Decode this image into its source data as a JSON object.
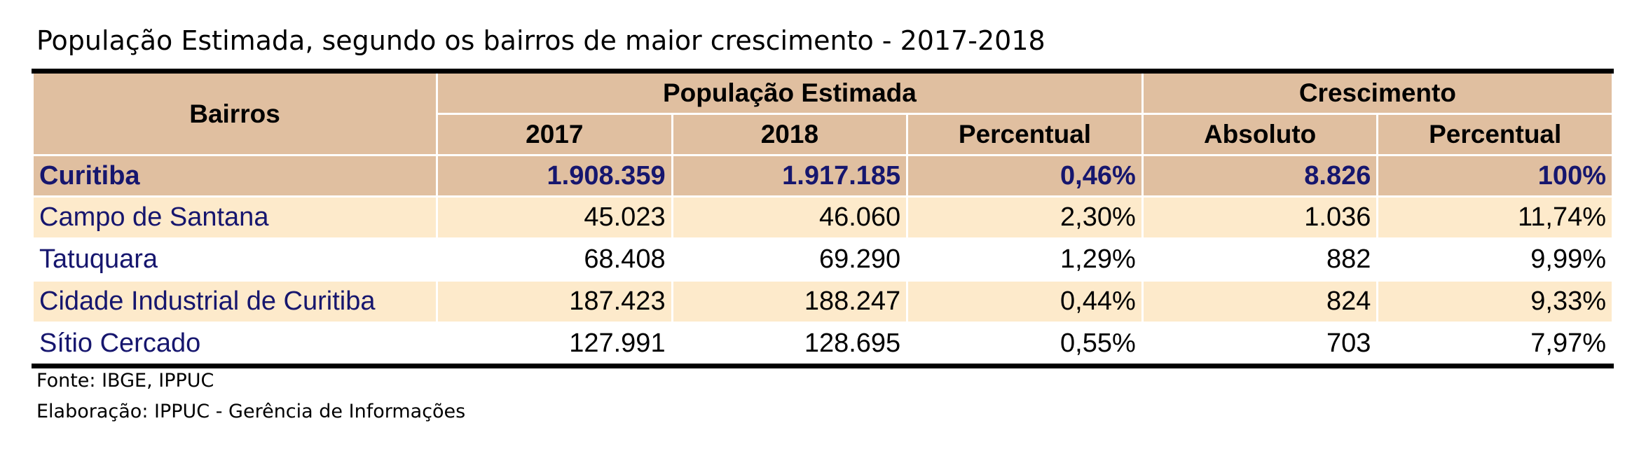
{
  "title": "População Estimada, segundo os bairros de maior crescimento  - 2017-2018",
  "header": {
    "bairros": "Bairros",
    "group_pop": "População Estimada",
    "group_cresc": "Crescimento",
    "col_2017": "2017",
    "col_2018": "2018",
    "col_pct": "Percentual",
    "col_abs": "Absoluto",
    "col_pct2": "Percentual"
  },
  "rows": [
    {
      "name": "Curitiba",
      "y2017": "1.908.359",
      "y2018": "1.917.185",
      "pct": "0,46%",
      "abs": "8.826",
      "pct2": "100%"
    },
    {
      "name": "Campo de Santana",
      "y2017": "45.023",
      "y2018": "46.060",
      "pct": "2,30%",
      "abs": "1.036",
      "pct2": "11,74%"
    },
    {
      "name": "Tatuquara",
      "y2017": "68.408",
      "y2018": "69.290",
      "pct": "1,29%",
      "abs": "882",
      "pct2": "9,99%"
    },
    {
      "name": "Cidade Industrial de Curitiba",
      "y2017": "187.423",
      "y2018": "188.247",
      "pct": "0,44%",
      "abs": "824",
      "pct2": "9,33%"
    },
    {
      "name": "Sítio Cercado",
      "y2017": "127.991",
      "y2018": "128.695",
      "pct": "0,55%",
      "abs": "703",
      "pct2": "7,97%"
    }
  ],
  "source": "Fonte: IBGE, IPPUC",
  "author": "Elaboração: IPPUC - Gerência de Informações",
  "colors": {
    "header_bg": "#e0bfa0",
    "band_bg": "#fdeacb",
    "name_text": "#16166e"
  }
}
